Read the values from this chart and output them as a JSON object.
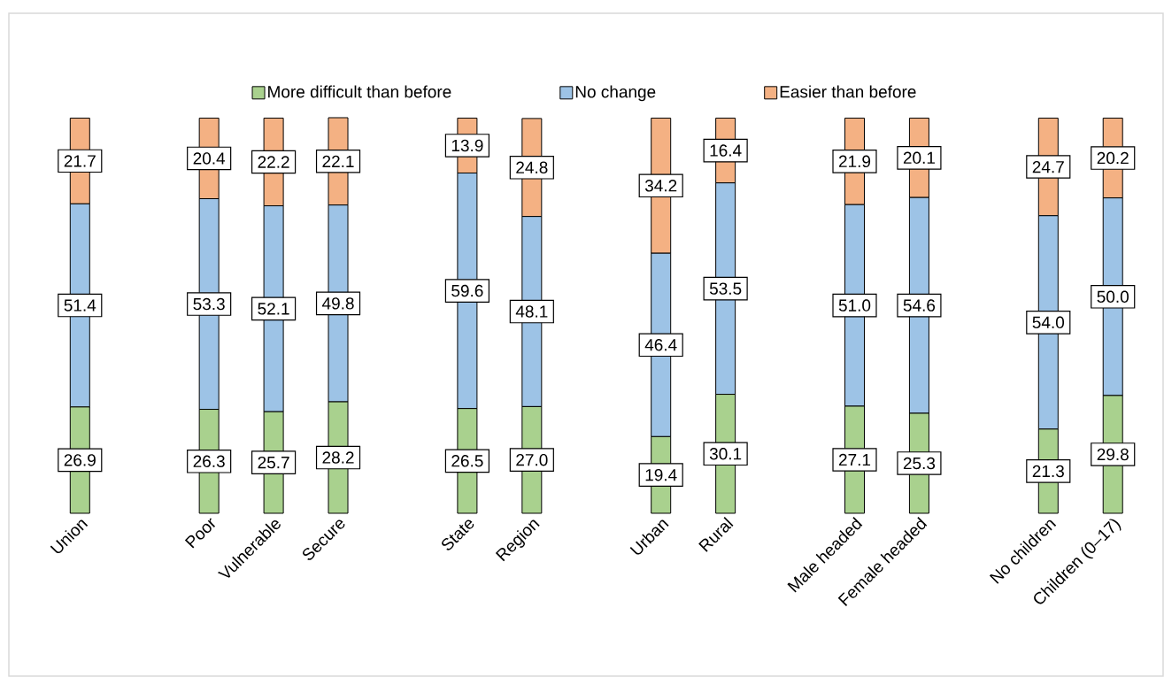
{
  "chart_data": {
    "type": "bar",
    "stacked": true,
    "legend": "top",
    "categories": [
      "Union",
      null,
      "Poor",
      "Vulnerable",
      "Secure",
      null,
      "State",
      "Region",
      null,
      "Urban",
      "Rural",
      null,
      "Male headed",
      "Female headed",
      null,
      "No children",
      "Children (0–17)"
    ],
    "series": [
      {
        "name": "More difficult than before",
        "color": "#a9d18e",
        "values": [
          26.9,
          null,
          26.3,
          25.7,
          28.2,
          null,
          26.5,
          27.0,
          null,
          19.4,
          30.1,
          null,
          27.1,
          25.3,
          null,
          21.3,
          29.8
        ],
        "value_labels": [
          "26.9",
          null,
          "26.3",
          "25.7",
          "28.2",
          null,
          "26.5",
          "27.0",
          null,
          "19.4",
          "30.1",
          null,
          "27.1",
          "25.3",
          null,
          "21.3",
          "29.8"
        ]
      },
      {
        "name": "No change",
        "color": "#9dc3e6",
        "values": [
          51.4,
          null,
          53.3,
          52.1,
          49.8,
          null,
          59.6,
          48.1,
          null,
          46.4,
          53.5,
          null,
          51.0,
          54.6,
          null,
          54.0,
          50.0
        ],
        "value_labels": [
          "51.4",
          null,
          "53.3",
          "52.1",
          "49.8",
          null,
          "59.6",
          "48.1",
          null,
          "46.4",
          "53.5",
          null,
          "51.0",
          "54.6",
          null,
          "54.0",
          "50.0"
        ]
      },
      {
        "name": "Easier than before",
        "color": "#f4b183",
        "values": [
          21.7,
          null,
          20.4,
          22.2,
          22.1,
          null,
          13.9,
          24.8,
          null,
          34.2,
          16.4,
          null,
          21.9,
          20.1,
          null,
          24.7,
          20.2
        ],
        "value_labels": [
          "21.7",
          null,
          "20.4",
          "22.2",
          "22.1",
          null,
          "13.9",
          "24.8",
          null,
          "34.2",
          "16.4",
          null,
          "21.9",
          "20.1",
          null,
          "24.7",
          "20.2"
        ]
      }
    ]
  }
}
